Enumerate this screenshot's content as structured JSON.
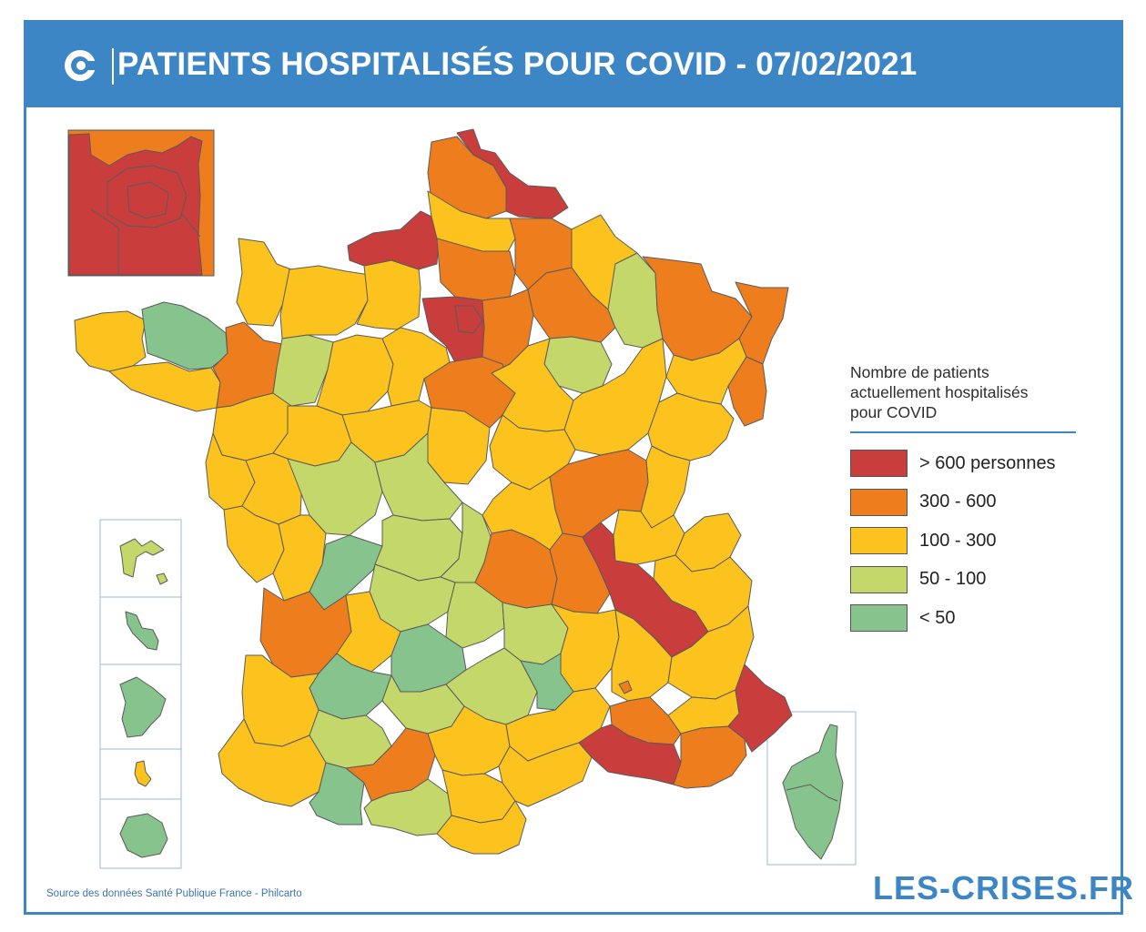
{
  "header": {
    "title": "PATIENTS HOSPITALISÉS POUR COVID - 07/02/2021",
    "logo_icon": "les-crises-logo-icon",
    "color": "#3d86c6"
  },
  "legend": {
    "title_lines": [
      "Nombre de patients",
      "actuellement hospitalisés",
      "pour COVID"
    ],
    "classes": [
      {
        "label": "> 600 personnes",
        "color": "#c93d3d"
      },
      {
        "label": "300 - 600",
        "color": "#ee7d1e"
      },
      {
        "label": "100 - 300",
        "color": "#fcc31e"
      },
      {
        "label": "50 - 100",
        "color": "#c4d76a"
      },
      {
        "label": "< 50",
        "color": "#86c38d"
      }
    ]
  },
  "footer": {
    "source": "Source des données Santé Publique France - Philcarto",
    "brand": "LES-CRISES.FR"
  }
}
